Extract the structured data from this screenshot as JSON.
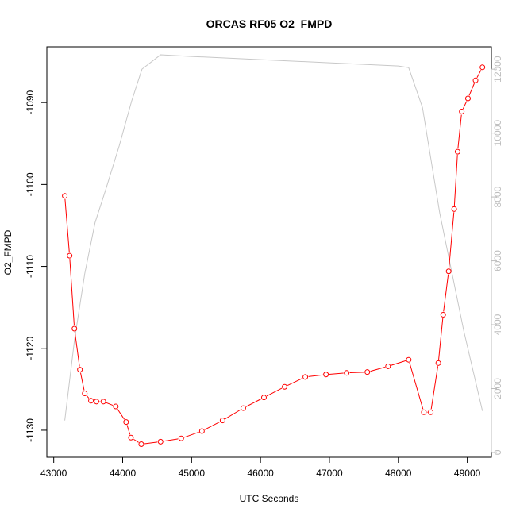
{
  "chart_data": {
    "type": "line",
    "title": "ORCAS RF05 O2_FMPD",
    "xlabel": "UTC Seconds",
    "ylabel": "O2_FMPD",
    "xlim": [
      42900,
      49350
    ],
    "ylim": [
      -1133.3,
      -1083.2
    ],
    "y2lim": [
      -150,
      12700
    ],
    "x_ticks": [
      43000,
      44000,
      45000,
      46000,
      47000,
      48000,
      49000
    ],
    "y_ticks": [
      -1130,
      -1120,
      -1110,
      -1100,
      -1090
    ],
    "y2_ticks": [
      0,
      2000,
      4000,
      6000,
      8000,
      10000,
      12000
    ],
    "grid": false,
    "colors": {
      "primary": "#ff0000",
      "secondary": "#c8c8c8",
      "secondary_ticks": "#bdbdbd"
    },
    "series": [
      {
        "axis": "left",
        "x": [
          43160,
          43230,
          43300,
          43380,
          43450,
          43540,
          43620,
          43720,
          43900,
          44050,
          44120,
          44270,
          44550,
          44850,
          45150,
          45450,
          45750,
          46050,
          46350,
          46650,
          46950,
          47250,
          47550,
          47850,
          48150,
          48370,
          48470,
          48580,
          48650,
          48730,
          48810,
          48860,
          48920,
          49010,
          49120,
          49220
        ],
        "y": [
          -1101.4,
          -1108.7,
          -1117.6,
          -1122.6,
          -1125.5,
          -1126.4,
          -1126.5,
          -1126.5,
          -1127.1,
          -1129.0,
          -1130.9,
          -1131.7,
          -1131.4,
          -1131.0,
          -1130.1,
          -1128.8,
          -1127.3,
          -1126.0,
          -1124.7,
          -1123.5,
          -1123.2,
          -1123.0,
          -1122.9,
          -1122.2,
          -1121.4,
          -1127.8,
          -1127.8,
          -1121.8,
          -1115.9,
          -1110.6,
          -1103.0,
          -1096.0,
          -1091.1,
          -1089.5,
          -1087.3,
          -1085.7
        ]
      },
      {
        "axis": "right",
        "x": [
          43160,
          43300,
          43450,
          43600,
          43750,
          43950,
          44130,
          44280,
          44550,
          45000,
          46000,
          47000,
          48000,
          48150,
          48350,
          48600,
          48950,
          49220
        ],
        "y": [
          1000,
          3500,
          5600,
          7200,
          8200,
          9600,
          11000,
          12000,
          12450,
          12400,
          12300,
          12200,
          12100,
          12050,
          10800,
          7500,
          3800,
          1300
        ]
      }
    ]
  }
}
